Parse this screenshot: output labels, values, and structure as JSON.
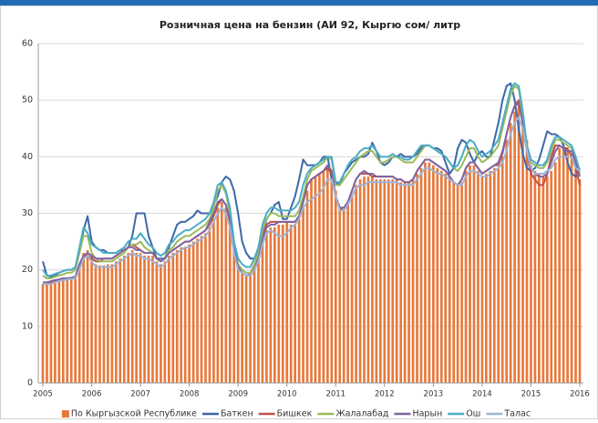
{
  "chart_data": {
    "type": "bar",
    "title": "Розничная цена на бензин (АИ 92, Кыргю сом/ литр",
    "categories": [
      "2005",
      null,
      null,
      null,
      null,
      null,
      null,
      null,
      null,
      null,
      null,
      null,
      "2006",
      null,
      null,
      null,
      null,
      null,
      null,
      null,
      null,
      null,
      null,
      null,
      "2007",
      null,
      null,
      null,
      null,
      null,
      null,
      null,
      null,
      null,
      null,
      null,
      "2008",
      null,
      null,
      null,
      null,
      null,
      null,
      null,
      null,
      null,
      null,
      null,
      "2009",
      null,
      null,
      null,
      null,
      null,
      null,
      null,
      null,
      null,
      null,
      null,
      "2010",
      null,
      null,
      null,
      null,
      null,
      null,
      null,
      null,
      null,
      null,
      null,
      "2011",
      null,
      null,
      null,
      null,
      null,
      null,
      null,
      null,
      null,
      null,
      null,
      "2012",
      null,
      null,
      null,
      null,
      null,
      null,
      null,
      null,
      null,
      null,
      null,
      "2013",
      null,
      null,
      null,
      null,
      null,
      null,
      null,
      null,
      null,
      null,
      null,
      "2014",
      null,
      null,
      null,
      null,
      null,
      null,
      null,
      null,
      null,
      null,
      null,
      "2015",
      null,
      null,
      null,
      null,
      null,
      null,
      null,
      null,
      null,
      null,
      null,
      "2016"
    ],
    "ylim": [
      0,
      60
    ],
    "yticks": [
      0,
      10,
      20,
      30,
      40,
      50,
      60
    ],
    "grid": true,
    "legend": "bottom",
    "series": [
      {
        "name": "По Кыргызской Республике",
        "type": "bar",
        "color": "#e8793a",
        "values": [
          17.5,
          17.5,
          17.6,
          17.8,
          18.0,
          18.2,
          18.4,
          18.5,
          18.5,
          20.5,
          23.0,
          23.5,
          22.5,
          21.0,
          20.8,
          20.8,
          21.0,
          21.0,
          21.5,
          22.0,
          22.5,
          23.0,
          23.5,
          23.0,
          23.0,
          22.5,
          22.5,
          22.5,
          21.5,
          21.0,
          21.5,
          22.5,
          23.0,
          23.5,
          24.0,
          24.0,
          24.5,
          25.0,
          25.5,
          26.0,
          26.5,
          27.5,
          29.0,
          31.0,
          32.0,
          31.0,
          28.0,
          23.5,
          20.5,
          19.5,
          19.0,
          19.0,
          20.0,
          22.0,
          25.0,
          27.0,
          27.5,
          27.5,
          28.0,
          28.0,
          28.5,
          28.0,
          28.0,
          29.0,
          31.0,
          34.0,
          36.0,
          36.5,
          37.0,
          37.5,
          38.0,
          37.0,
          34.0,
          31.0,
          30.5,
          31.5,
          33.0,
          35.0,
          36.0,
          36.5,
          36.5,
          36.5,
          36.0,
          36.0,
          36.0,
          36.0,
          36.0,
          36.0,
          35.5,
          35.5,
          35.5,
          36.0,
          37.0,
          38.0,
          39.0,
          39.0,
          38.5,
          38.0,
          37.5,
          37.0,
          36.5,
          35.5,
          35.0,
          35.5,
          37.5,
          38.5,
          38.5,
          37.5,
          36.5,
          37.0,
          37.5,
          38.0,
          38.0,
          40.0,
          43.0,
          46.0,
          48.0,
          50.0,
          47.0,
          43.0,
          38.5,
          37.5,
          37.0,
          36.5,
          36.5,
          37.5,
          39.0,
          41.5,
          41.5,
          41.0,
          40.5,
          39.0,
          36.0
        ]
      },
      {
        "name": "Баткен",
        "type": "line",
        "color": "#3c68a8",
        "values": [
          21.5,
          19,
          18.8,
          19,
          19.5,
          19.8,
          20,
          20,
          20.5,
          23,
          27,
          29.5,
          25,
          24,
          23.5,
          23.5,
          23,
          23,
          23,
          23.5,
          23.5,
          24,
          26,
          30,
          30,
          30,
          26,
          24,
          22,
          22,
          22,
          24,
          26,
          28,
          28.5,
          28.5,
          29,
          29.5,
          30.5,
          30,
          30,
          30,
          31.5,
          33,
          35.5,
          36.5,
          36,
          34,
          30,
          25,
          23,
          22,
          22,
          23.5,
          26,
          29,
          30,
          31.5,
          32,
          29,
          29,
          31,
          33,
          36,
          39.5,
          38.5,
          38.5,
          38.5,
          39,
          40,
          40,
          36,
          35.5,
          35,
          37,
          38,
          39,
          39.5,
          40,
          40,
          40.5,
          42.5,
          41,
          39,
          38.5,
          39,
          40,
          40,
          40.5,
          40,
          40,
          40,
          40.5,
          41.5,
          42,
          42,
          41.5,
          41.5,
          41,
          39,
          37,
          38,
          41.5,
          43,
          42.5,
          40.5,
          39,
          40.5,
          41,
          40,
          40,
          43,
          46,
          50,
          52.5,
          53,
          50,
          45,
          40.5,
          38,
          37.5,
          38,
          39.5,
          42,
          44.5,
          44,
          44,
          43.5,
          42,
          39,
          37,
          36.5,
          38
        ]
      },
      {
        "name": "Бишкек",
        "type": "line",
        "color": "#c0504d",
        "values": [
          17.5,
          17.5,
          17.8,
          18,
          18.3,
          18.5,
          18.5,
          18.6,
          18.8,
          21,
          22.5,
          22.5,
          22,
          21.5,
          21.5,
          22,
          22,
          22,
          22.5,
          23,
          23.5,
          24,
          24.5,
          24,
          23.5,
          23,
          23,
          23,
          22,
          21.5,
          22,
          23,
          23.5,
          24,
          24.5,
          25,
          25,
          25.5,
          26,
          26.5,
          27,
          28,
          29.5,
          31.5,
          32.5,
          31.5,
          28.5,
          24,
          20.5,
          19.5,
          19,
          19.2,
          20.5,
          23,
          26,
          28,
          28.5,
          28.5,
          28.5,
          28.5,
          28.5,
          28.5,
          28.5,
          29.5,
          32,
          35,
          36,
          36.5,
          37,
          37.5,
          38,
          37,
          33,
          31,
          30.5,
          32,
          34,
          36,
          37,
          37,
          37,
          36.5,
          36.5,
          36.5,
          36.5,
          36.5,
          36.5,
          36,
          36,
          35.5,
          35.5,
          36,
          37.5,
          38.5,
          39.5,
          39.5,
          39,
          38.5,
          38,
          37.5,
          36.5,
          35.5,
          35,
          36,
          38,
          39,
          39,
          38,
          37,
          37.5,
          38,
          38.5,
          38.5,
          40.5,
          44,
          47,
          49,
          50,
          47,
          41,
          37,
          36,
          35,
          35,
          37,
          40,
          42,
          42,
          41.5,
          41.5,
          40,
          38,
          35
        ]
      },
      {
        "name": "Жалалабад",
        "type": "line",
        "color": "#9bbb59",
        "values": [
          19,
          18.5,
          18.5,
          18.8,
          19,
          19.2,
          19.5,
          19.5,
          20,
          23,
          26,
          26,
          23,
          22,
          21.5,
          21.5,
          21.5,
          21.5,
          22,
          22.5,
          23,
          24,
          24.5,
          24.5,
          25,
          24,
          23.5,
          23,
          22,
          21.5,
          22,
          23.5,
          24,
          25,
          25.5,
          26,
          26,
          26.5,
          27,
          27.5,
          28,
          29,
          31,
          34,
          35,
          33.5,
          30,
          25,
          21,
          20,
          19.5,
          19.5,
          21,
          23,
          27,
          29,
          30,
          30,
          29.5,
          29.5,
          29.5,
          29.5,
          29.5,
          30.5,
          33,
          36,
          37.5,
          38,
          38.5,
          39,
          40,
          39.5,
          35,
          35,
          36,
          37,
          38,
          39,
          40,
          40.5,
          41,
          41,
          40,
          39,
          39,
          39.5,
          40,
          40,
          39.5,
          39,
          39,
          39,
          40,
          41,
          42,
          42,
          41.5,
          41,
          40.5,
          40,
          39,
          38,
          37.5,
          38.5,
          40,
          41.5,
          41.5,
          40,
          39,
          39.5,
          40,
          41,
          42,
          45,
          48,
          51,
          52.5,
          52,
          47,
          42,
          39,
          38.5,
          38,
          38,
          39,
          41,
          43,
          43,
          42.5,
          42,
          41.5,
          39.5,
          37
        ]
      },
      {
        "name": "Нарын",
        "type": "line",
        "color": "#8064a2",
        "values": [
          17.8,
          17.8,
          18,
          18.2,
          18.3,
          18.5,
          18.5,
          18.6,
          18.8,
          21,
          22.5,
          23,
          22.5,
          22,
          22,
          22,
          22,
          22,
          22.5,
          23,
          23.5,
          24,
          24,
          23.5,
          23.5,
          23,
          23,
          23,
          22,
          21.5,
          22,
          23,
          23.5,
          24,
          24.5,
          25,
          25,
          25.5,
          26,
          26.5,
          27,
          28.5,
          30,
          32,
          32.5,
          31.5,
          29,
          24,
          20.5,
          19.5,
          19,
          19,
          20,
          22,
          25.5,
          27.5,
          28,
          28,
          28.5,
          28.5,
          28.5,
          28.5,
          28.5,
          29.5,
          32,
          35,
          36,
          36.5,
          37,
          37.5,
          38.5,
          37.5,
          33,
          31,
          31,
          32,
          34,
          36,
          37,
          37.5,
          37,
          37,
          36.5,
          36.5,
          36.5,
          36.5,
          36.5,
          36,
          36,
          35.5,
          35.5,
          36,
          37.5,
          38.5,
          39.5,
          39.5,
          39,
          38.5,
          38,
          37.5,
          36.5,
          35.5,
          35,
          36,
          38,
          39,
          39,
          38,
          37,
          37.5,
          38,
          38.5,
          39,
          41,
          44,
          47,
          49,
          49.5,
          46,
          41,
          38,
          37,
          36.5,
          36.5,
          37,
          39,
          41,
          42,
          41.5,
          41,
          41,
          39,
          36.5
        ]
      },
      {
        "name": "Ош",
        "type": "line",
        "color": "#4bacc6",
        "values": [
          20,
          19,
          19,
          19.3,
          19.5,
          19.8,
          20,
          20,
          20.5,
          24,
          27.5,
          26.5,
          24.5,
          24,
          23.5,
          23,
          23,
          23,
          23,
          23.5,
          24,
          25,
          25.5,
          25.5,
          26.5,
          25.5,
          24.5,
          24,
          23,
          22.5,
          23,
          24.5,
          25,
          26,
          26.5,
          27,
          27,
          27.5,
          28,
          28.5,
          29,
          30,
          32,
          35,
          35.5,
          34,
          31,
          25,
          22,
          21,
          20.5,
          20.5,
          22,
          24,
          28,
          30,
          31,
          31,
          30.5,
          30.5,
          30.5,
          30.5,
          31,
          32,
          35,
          37,
          38,
          38.5,
          39,
          39.5,
          40,
          40,
          35.5,
          35.5,
          37,
          38.5,
          39.5,
          40,
          41,
          41.5,
          41.5,
          42,
          41,
          40,
          40,
          40,
          40.5,
          40,
          40,
          39.5,
          39.5,
          40,
          41,
          42,
          42,
          42,
          41.5,
          41,
          40.5,
          40,
          39,
          38,
          38.5,
          40,
          42,
          43,
          42.5,
          41,
          40,
          40.5,
          41,
          42,
          43,
          46,
          49,
          52,
          53,
          52.5,
          48,
          42,
          39.5,
          39,
          38.5,
          38.5,
          39.5,
          42,
          43.5,
          43.5,
          43,
          42.5,
          42,
          40,
          37.5
        ]
      },
      {
        "name": "Талас",
        "type": "line",
        "color": "#9fb4d6",
        "values": [
          17.5,
          17.5,
          17.5,
          17.8,
          18,
          18.2,
          18.3,
          18.4,
          18.5,
          20,
          22,
          22.5,
          21.5,
          20.5,
          20.5,
          20.5,
          20.5,
          20.5,
          21,
          21.5,
          22,
          22.5,
          23,
          22.5,
          22.5,
          22,
          22,
          21.5,
          21,
          20.5,
          21,
          22,
          22.5,
          23,
          23.5,
          24,
          24,
          24.5,
          25,
          25.5,
          26,
          27,
          28.5,
          30,
          31,
          30,
          27.5,
          23,
          20,
          19.5,
          19,
          19,
          20,
          21.5,
          24.5,
          26.5,
          27,
          26.5,
          26,
          26,
          26.5,
          27.5,
          28,
          29,
          31,
          32,
          32.5,
          33,
          33.5,
          34.5,
          36,
          36,
          33,
          30.5,
          30.5,
          31.5,
          33,
          34.5,
          35,
          35,
          35.5,
          35.5,
          35.5,
          35.5,
          35.5,
          35.5,
          35.5,
          35.5,
          35,
          35,
          35,
          35,
          36,
          37,
          38,
          38,
          37.5,
          37,
          37,
          36.5,
          36,
          35.5,
          35,
          35,
          36.5,
          37.5,
          37.5,
          37,
          36.5,
          36.5,
          37,
          37.5,
          38,
          39,
          41,
          44,
          46,
          47,
          45,
          41,
          38,
          37,
          37,
          37,
          37.5,
          38,
          39.5,
          40,
          40,
          40,
          40,
          38,
          37.5
        ]
      }
    ]
  }
}
